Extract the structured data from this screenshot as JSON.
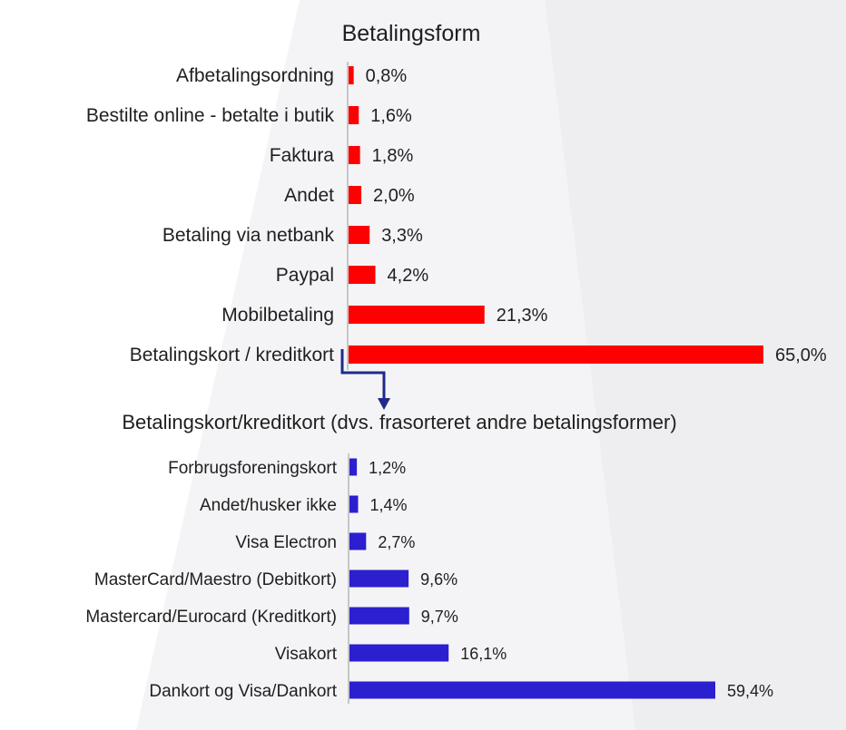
{
  "chart_data": [
    {
      "type": "bar",
      "orientation": "horizontal",
      "title": "Betalingsform",
      "categories": [
        "Afbetalingsordning",
        "Bestilte online - betalte i butik",
        "Faktura",
        "Andet",
        "Betaling via netbank",
        "Paypal",
        "Mobilbetaling",
        "Betalingskort / kreditkort"
      ],
      "values": [
        0.8,
        1.6,
        1.8,
        2.0,
        3.3,
        4.2,
        21.3,
        65.0
      ],
      "value_labels": [
        "0,8%",
        "1,6%",
        "1,8%",
        "2,0%",
        "3,3%",
        "4,2%",
        "21,3%",
        "65,0%"
      ],
      "unit": "%",
      "color": "#ff0000",
      "grid": false,
      "legend": "none"
    },
    {
      "type": "bar",
      "orientation": "horizontal",
      "title": "Betalingskort/kreditkort (dvs. frasorteret andre betalingsformer)",
      "categories": [
        "Forbrugsforeningskort",
        "Andet/husker ikke",
        "Visa Electron",
        "MasterCard/Maestro (Debitkort)",
        "Mastercard/Eurocard (Kreditkort)",
        "Visakort",
        "Dankort og Visa/Dankort"
      ],
      "values": [
        1.2,
        1.4,
        2.7,
        9.6,
        9.7,
        16.1,
        59.4
      ],
      "value_labels": [
        "1,2%",
        "1,4%",
        "2,7%",
        "9,6%",
        "9,7%",
        "16,1%",
        "59,4%"
      ],
      "unit": "%",
      "color": "#2b1fd0",
      "grid": false,
      "legend": "none"
    }
  ],
  "colors": {
    "axis": "#999999",
    "connector": "#1f2a8a",
    "background_shape": "#f3f3f5"
  }
}
